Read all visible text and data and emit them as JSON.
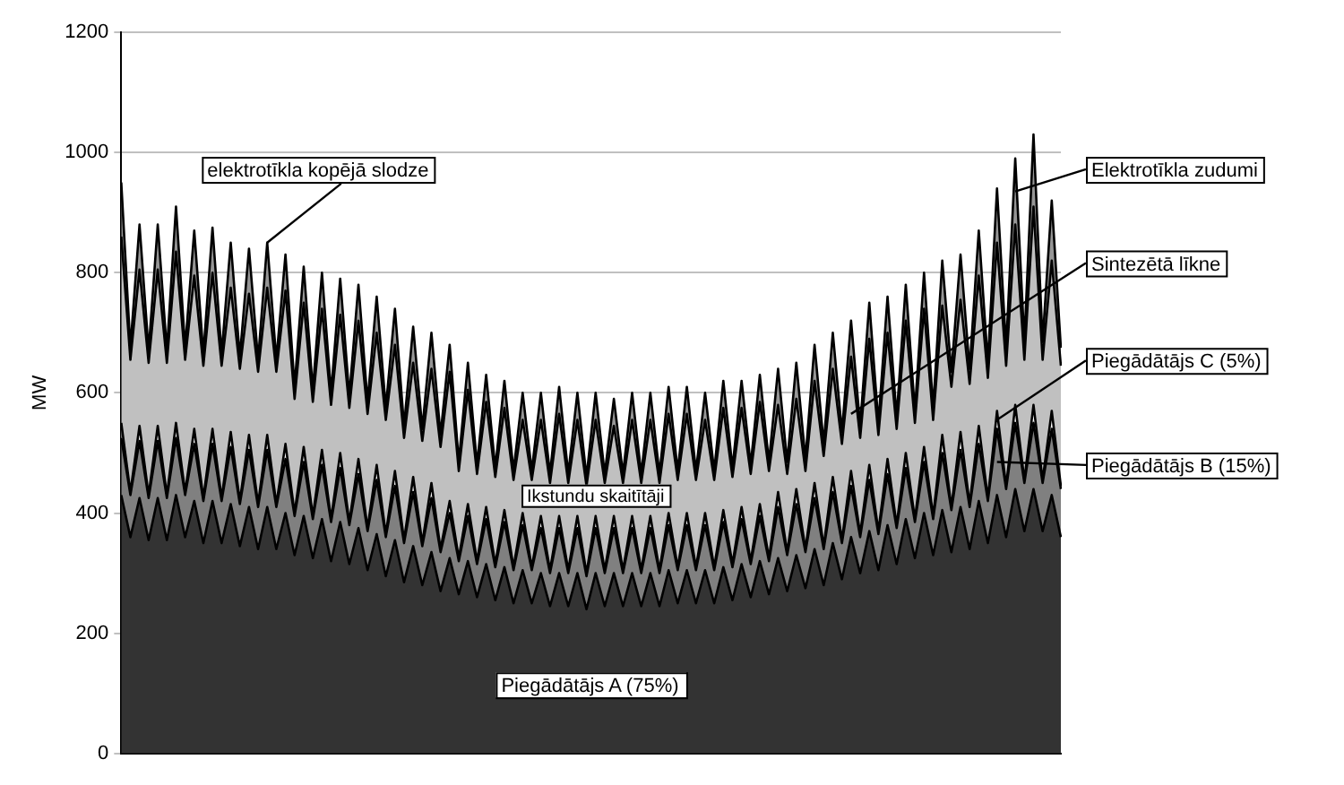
{
  "chart_data": {
    "type": "area",
    "stacked": true,
    "ylabel": "MW",
    "ylim": [
      0,
      1200
    ],
    "yticks": [
      0,
      200,
      400,
      600,
      800,
      1000,
      1200
    ],
    "grid": "y",
    "legend": "right",
    "annotations": [
      "elektrotīkla kopējā slodze",
      "Ikstundu skaitītāji"
    ],
    "categories": [
      null,
      null,
      null,
      null,
      null,
      null,
      null,
      null,
      null,
      null,
      null,
      null,
      null,
      null,
      null,
      null,
      null,
      null,
      null,
      null,
      null,
      null,
      null,
      null,
      null,
      null,
      null,
      null,
      null,
      null,
      null,
      null,
      null,
      null,
      null,
      null,
      null,
      null,
      null,
      null,
      null,
      null,
      null,
      null,
      null,
      null,
      null,
      null,
      null,
      null,
      null,
      null,
      null,
      null,
      null,
      null,
      null,
      null,
      null,
      null,
      null,
      null,
      null,
      null,
      null,
      null,
      null,
      null,
      null,
      null,
      null,
      null,
      null,
      null,
      null,
      null,
      null,
      null,
      null,
      null,
      null,
      null,
      null,
      null,
      null,
      null,
      null,
      null,
      null,
      null,
      null,
      null,
      null,
      null,
      null,
      null,
      null,
      null,
      null,
      null,
      null,
      null,
      null,
      null
    ],
    "series": [
      {
        "name": "Piegādātājs A (75%)",
        "color": "#333333",
        "values": [
          430,
          360,
          425,
          355,
          425,
          355,
          430,
          360,
          420,
          350,
          420,
          350,
          415,
          345,
          410,
          340,
          410,
          340,
          400,
          330,
          395,
          325,
          390,
          320,
          385,
          315,
          375,
          305,
          365,
          295,
          355,
          285,
          345,
          280,
          335,
          270,
          325,
          265,
          320,
          260,
          315,
          255,
          310,
          250,
          305,
          250,
          300,
          245,
          300,
          245,
          300,
          240,
          300,
          245,
          300,
          245,
          300,
          245,
          300,
          245,
          305,
          250,
          305,
          250,
          305,
          250,
          310,
          255,
          315,
          260,
          320,
          265,
          325,
          270,
          330,
          275,
          340,
          280,
          350,
          290,
          360,
          300,
          370,
          305,
          380,
          315,
          390,
          325,
          400,
          330,
          405,
          335,
          410,
          340,
          420,
          350,
          430,
          360,
          440,
          370,
          440,
          370,
          430,
          360
        ]
      },
      {
        "name": "Piegādātājs B (15%)",
        "color": "#808080",
        "values": [
          95,
          70,
          95,
          70,
          95,
          70,
          95,
          70,
          95,
          70,
          95,
          70,
          95,
          70,
          95,
          70,
          95,
          70,
          90,
          65,
          90,
          65,
          90,
          65,
          90,
          65,
          90,
          65,
          90,
          65,
          90,
          65,
          90,
          65,
          90,
          65,
          75,
          55,
          75,
          55,
          75,
          55,
          75,
          55,
          75,
          55,
          75,
          55,
          75,
          55,
          75,
          55,
          75,
          55,
          75,
          55,
          75,
          55,
          75,
          55,
          75,
          55,
          75,
          55,
          75,
          55,
          75,
          55,
          75,
          55,
          75,
          55,
          85,
          60,
          85,
          60,
          85,
          60,
          85,
          60,
          85,
          60,
          85,
          60,
          85,
          60,
          85,
          60,
          85,
          60,
          95,
          70,
          95,
          70,
          95,
          70,
          110,
          80,
          110,
          80,
          110,
          80,
          110,
          80
        ]
      },
      {
        "name": "Piegādātājs C (5%)",
        "color": "#ffffff",
        "values": [
          25,
          5,
          25,
          5,
          25,
          5,
          25,
          5,
          25,
          5,
          25,
          5,
          25,
          5,
          25,
          5,
          25,
          5,
          25,
          5,
          25,
          5,
          25,
          5,
          25,
          5,
          25,
          5,
          25,
          5,
          25,
          5,
          25,
          5,
          25,
          5,
          20,
          5,
          20,
          5,
          20,
          5,
          20,
          5,
          20,
          5,
          20,
          5,
          20,
          5,
          20,
          5,
          20,
          5,
          20,
          5,
          20,
          5,
          20,
          5,
          20,
          5,
          20,
          5,
          20,
          5,
          20,
          5,
          20,
          5,
          20,
          5,
          25,
          5,
          25,
          5,
          25,
          5,
          25,
          5,
          25,
          5,
          25,
          5,
          25,
          5,
          25,
          5,
          25,
          5,
          30,
          5,
          30,
          5,
          30,
          5,
          30,
          5,
          30,
          5,
          30,
          5,
          30,
          5
        ]
      },
      {
        "name": "Sintezētā līkne",
        "color": "#c0c0c0",
        "values": [
          310,
          220,
          260,
          220,
          260,
          220,
          285,
          220,
          255,
          220,
          260,
          220,
          240,
          220,
          235,
          220,
          245,
          220,
          255,
          190,
          240,
          190,
          235,
          190,
          230,
          190,
          230,
          190,
          220,
          190,
          210,
          170,
          190,
          170,
          190,
          170,
          215,
          145,
          190,
          145,
          175,
          145,
          170,
          145,
          155,
          145,
          160,
          145,
          170,
          145,
          160,
          145,
          160,
          145,
          150,
          145,
          160,
          145,
          160,
          145,
          165,
          145,
          165,
          145,
          155,
          145,
          170,
          145,
          165,
          145,
          170,
          145,
          145,
          130,
          150,
          130,
          170,
          150,
          180,
          160,
          190,
          160,
          210,
          160,
          210,
          160,
          220,
          160,
          230,
          160,
          215,
          200,
          220,
          200,
          250,
          200,
          280,
          200,
          300,
          200,
          330,
          200,
          250,
          200
        ]
      },
      {
        "name": "Elektrotīkla zudumi",
        "color": "#969696",
        "values": [
          90,
          20,
          75,
          20,
          75,
          20,
          75,
          20,
          75,
          20,
          75,
          20,
          75,
          20,
          75,
          20,
          75,
          20,
          60,
          20,
          60,
          20,
          60,
          20,
          60,
          20,
          60,
          20,
          60,
          20,
          60,
          20,
          60,
          20,
          60,
          20,
          45,
          15,
          45,
          15,
          45,
          15,
          45,
          15,
          45,
          15,
          45,
          15,
          45,
          15,
          45,
          15,
          45,
          15,
          45,
          15,
          45,
          15,
          45,
          15,
          45,
          15,
          45,
          15,
          45,
          15,
          45,
          15,
          45,
          15,
          45,
          15,
          60,
          20,
          60,
          20,
          60,
          20,
          60,
          20,
          60,
          20,
          60,
          20,
          60,
          20,
          60,
          20,
          60,
          20,
          75,
          25,
          75,
          25,
          75,
          25,
          90,
          30,
          110,
          30,
          120,
          30,
          100,
          30
        ]
      }
    ]
  }
}
